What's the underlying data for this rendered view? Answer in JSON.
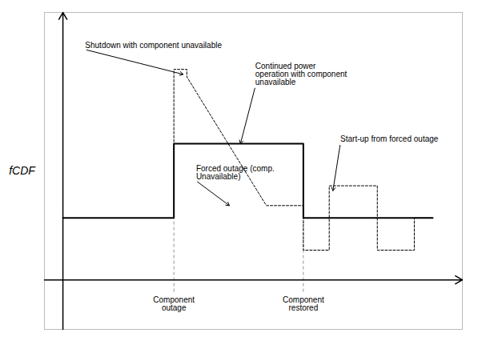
{
  "chart_data": {
    "type": "line",
    "ylabel": "fCDF",
    "xlim": [
      -0.5,
      10.8
    ],
    "ylim": [
      -2.0,
      10.8
    ],
    "tick_labels": false,
    "series": [
      {
        "x": [
          0.0,
          3.0,
          3.0,
          6.5,
          6.5,
          10.0
        ],
        "values": [
          2.5,
          2.5,
          5.5,
          5.5,
          2.5,
          2.5
        ],
        "color": "#000000",
        "line_style": "solid"
      },
      {
        "x": [
          3.0,
          3.0,
          3.35,
          3.35,
          5.5,
          6.5,
          6.5,
          7.2,
          7.2,
          8.5,
          8.5,
          9.5,
          9.5,
          10.0
        ],
        "values": [
          2.5,
          8.5,
          8.5,
          8.2,
          3.0,
          3.0,
          1.2,
          1.2,
          3.8,
          3.8,
          1.2,
          1.2,
          2.5,
          2.5
        ],
        "color": "#000000",
        "line_style": "dashed"
      }
    ],
    "vlines": {
      "x": [
        3.0,
        6.5
      ],
      "y": [
        -0.5,
        2.5
      ],
      "color": "#666666",
      "line_style": "dashed"
    },
    "labels": [
      {
        "text": "Component\noutage",
        "x": 3.0,
        "y": -0.7
      },
      {
        "text": "Component\nrestored",
        "x": 6.5,
        "y": -0.7
      }
    ],
    "annotations": [
      {
        "text": "Shutdown with component unavailable",
        "xy": [
          3.25,
          8.3
        ],
        "xytext": [
          0.6,
          9.3
        ]
      },
      {
        "text": "Continued power\noperation with component\nunavailable",
        "xy": [
          4.8,
          5.5
        ],
        "xytext": [
          5.2,
          7.8
        ]
      },
      {
        "text": "Forced outage (comp.\nUnavailable)",
        "xy": [
          4.5,
          3.0
        ],
        "xytext": [
          3.6,
          4.0
        ]
      },
      {
        "text": "Start-up from forced outage",
        "xy": [
          7.3,
          3.6
        ],
        "xytext": [
          7.5,
          5.5
        ]
      }
    ]
  }
}
